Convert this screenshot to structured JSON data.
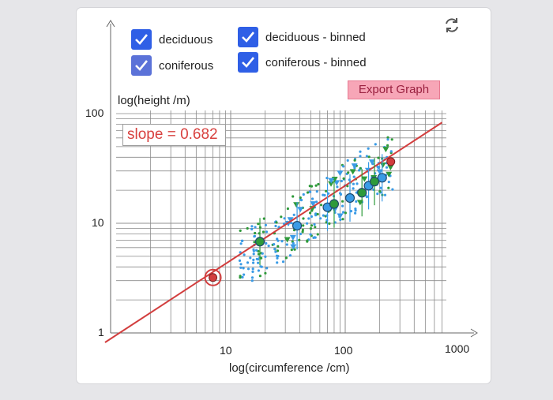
{
  "legend": {
    "items": [
      {
        "label": "deciduous",
        "checked": true
      },
      {
        "label": "coniferous",
        "checked": true
      },
      {
        "label": "deciduous - binned",
        "checked": true
      },
      {
        "label": "coniferous - binned",
        "checked": true
      }
    ]
  },
  "toolbar": {
    "export_label": "Export Graph",
    "reset_icon": "refresh-icon"
  },
  "slope_label": "slope = 0.682",
  "colors": {
    "deciduous": "#3a9be6",
    "coniferous": "#2e9a3a",
    "fit_line": "#d23e3e",
    "checkbox": "#2f5fe6",
    "export_button": "#f7a6b7"
  },
  "chart_data": {
    "type": "scatter",
    "title": "",
    "xlabel": "log(circumference /cm)",
    "ylabel": "log(height /m)",
    "x_scale": "log",
    "y_scale": "log",
    "xlim": [
      1,
      1000
    ],
    "ylim": [
      1,
      100
    ],
    "x_ticks": [
      "10",
      "100",
      "1000"
    ],
    "y_ticks": [
      "1",
      "10",
      "100"
    ],
    "grid": true,
    "slope": 0.682,
    "fit_line": [
      [
        0.8,
        0.82
      ],
      [
        700,
        83
      ]
    ],
    "highlight_point": [
      7,
      3.2
    ],
    "fit_endpoint": [
      250,
      36.5
    ],
    "series": [
      {
        "name": "deciduous - binned",
        "marker": "circle",
        "points": [
          [
            38,
            9.5
          ],
          [
            70,
            14
          ],
          [
            110,
            17
          ],
          [
            160,
            22
          ],
          [
            210,
            26
          ]
        ]
      },
      {
        "name": "coniferous - binned",
        "marker": "circle",
        "points": [
          [
            18,
            6.8
          ],
          [
            80,
            15
          ],
          [
            140,
            19
          ],
          [
            180,
            24
          ]
        ]
      }
    ]
  }
}
